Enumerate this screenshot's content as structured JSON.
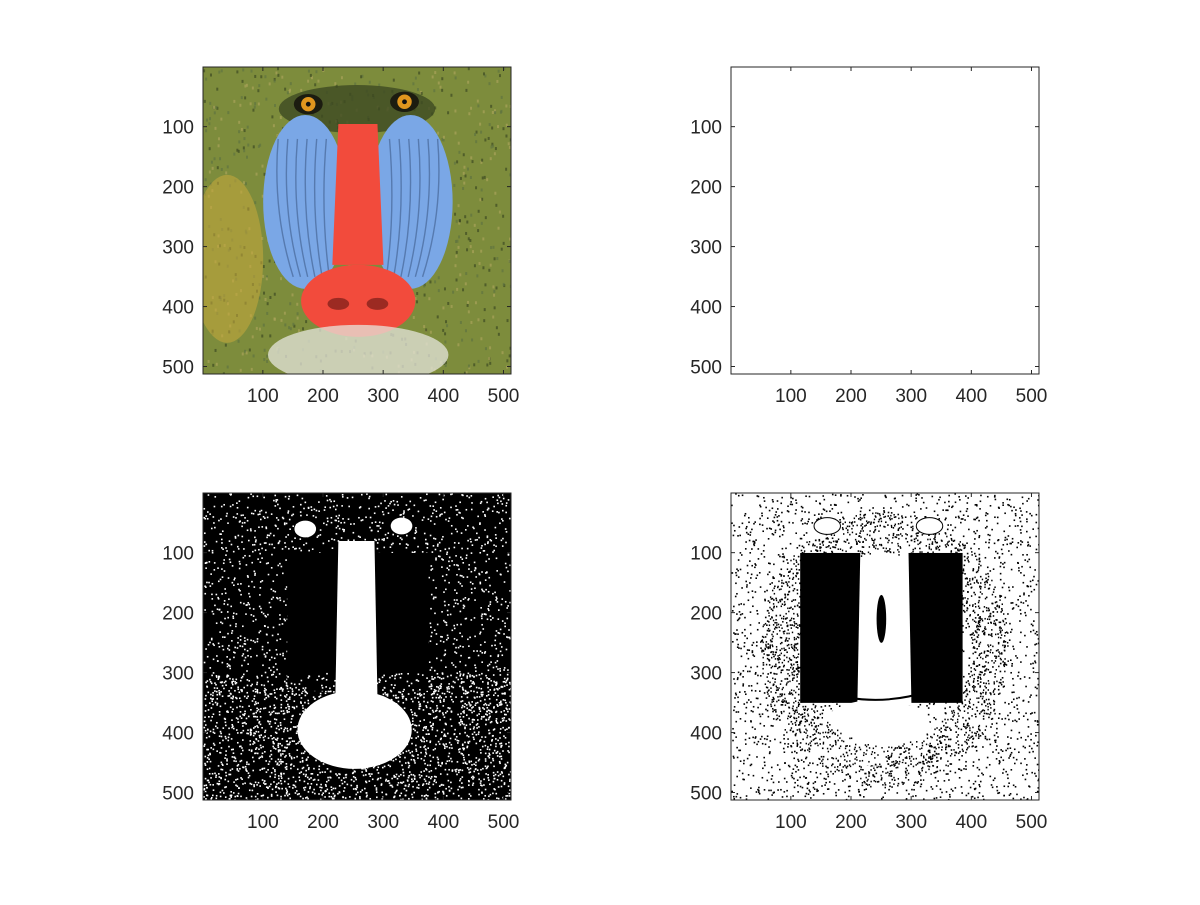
{
  "figure": {
    "background": "#ffffff",
    "axis_color": "#262626",
    "layout": "2x2 subplots"
  },
  "chart_data": [
    {
      "type": "image",
      "content": "color mandrill (baboon) photograph",
      "xlim": [
        0.5,
        512.5
      ],
      "ylim": [
        0.5,
        512.5
      ],
      "y_direction": "reverse",
      "xticks": [
        100,
        200,
        300,
        400,
        500
      ],
      "yticks": [
        100,
        200,
        300,
        400,
        500
      ],
      "xticklabels": [
        "100",
        "200",
        "300",
        "400",
        "500"
      ],
      "yticklabels": [
        "100",
        "200",
        "300",
        "400",
        "500"
      ],
      "grid": false,
      "colors": {
        "fur": "#7d8c3c",
        "dark_fur": "#3d4a22",
        "cheek": "#7aa7e6",
        "nose": "#f24b3c",
        "eye": "#e0961e",
        "beard": "#e6e6dc"
      }
    },
    {
      "type": "image",
      "content": "blank white image",
      "xlim": [
        0.5,
        512.5
      ],
      "ylim": [
        0.5,
        512.5
      ],
      "y_direction": "reverse",
      "xticks": [
        100,
        200,
        300,
        400,
        500
      ],
      "yticks": [
        100,
        200,
        300,
        400,
        500
      ],
      "xticklabels": [
        "100",
        "200",
        "300",
        "400",
        "500"
      ],
      "yticklabels": [
        "100",
        "200",
        "300",
        "400",
        "500"
      ],
      "grid": false,
      "colors": {
        "fill": "#ffffff"
      }
    },
    {
      "type": "image",
      "content": "binary threshold image, mostly black background with white nose region",
      "xlim": [
        0.5,
        512.5
      ],
      "ylim": [
        0.5,
        512.5
      ],
      "y_direction": "reverse",
      "xticks": [
        100,
        200,
        300,
        400,
        500
      ],
      "yticks": [
        100,
        200,
        300,
        400,
        500
      ],
      "xticklabels": [
        "100",
        "200",
        "300",
        "400",
        "500"
      ],
      "yticklabels": [
        "100",
        "200",
        "300",
        "400",
        "500"
      ],
      "grid": false,
      "colors": {
        "background": "#000000",
        "foreground": "#ffffff"
      }
    },
    {
      "type": "image",
      "content": "binary threshold image, mostly white background with black cheek regions",
      "xlim": [
        0.5,
        512.5
      ],
      "ylim": [
        0.5,
        512.5
      ],
      "y_direction": "reverse",
      "xticks": [
        100,
        200,
        300,
        400,
        500
      ],
      "yticks": [
        100,
        200,
        300,
        400,
        500
      ],
      "xticklabels": [
        "100",
        "200",
        "300",
        "400",
        "500"
      ],
      "yticklabels": [
        "100",
        "200",
        "300",
        "400",
        "500"
      ],
      "grid": false,
      "colors": {
        "background": "#ffffff",
        "foreground": "#000000"
      }
    }
  ]
}
